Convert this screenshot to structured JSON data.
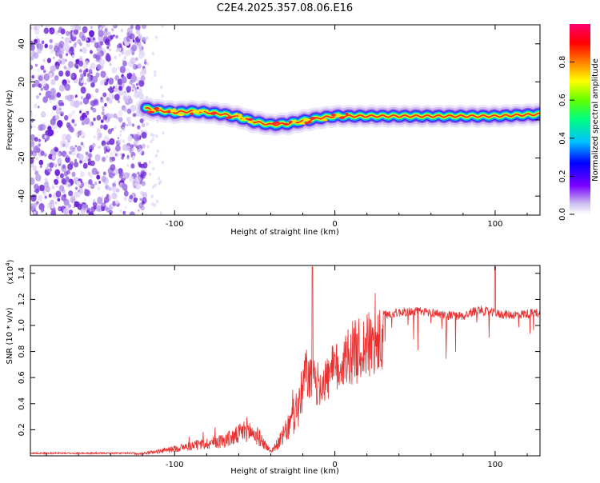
{
  "page_title": "C2E4.2025.357.08.06.E16",
  "colors": {
    "snr_line": "#e83030",
    "axis": "#000000",
    "noise_purple": "#7b2be0",
    "colorbar_stops": [
      "#b0a0e0",
      "#7a00ff",
      "#0000ff",
      "#00bfff",
      "#00ff7f",
      "#7fff00",
      "#ffff00",
      "#ff8000",
      "#ff0000",
      "#ff0070"
    ]
  },
  "chart_data": [
    {
      "type": "heatmap",
      "name": "spectrogram",
      "title": "C2E4.2025.357.08.06.E16",
      "xlabel": "Height of straight line (km)",
      "ylabel": "Frequency (Hz)",
      "xlim": [
        -190,
        128
      ],
      "ylim": [
        -50,
        50
      ],
      "xticks": [
        -100,
        0,
        100
      ],
      "xtick_labels": [
        "-100",
        "0",
        "100"
      ],
      "yticks": [
        -40,
        -20,
        0,
        20,
        40
      ],
      "ytick_labels": [
        "-40",
        "-20",
        "0",
        "20",
        "40"
      ],
      "ridge": {
        "x": [
          -118,
          -110,
          -100,
          -90,
          -80,
          -70,
          -60,
          -50,
          -40,
          -30,
          -20,
          -10,
          0,
          10,
          20,
          40,
          60,
          80,
          100,
          128
        ],
        "y": [
          6,
          5,
          4,
          4.5,
          4,
          3,
          1.5,
          -1,
          -2.5,
          -2,
          -0.5,
          1,
          2,
          2,
          2,
          2,
          2,
          2,
          2,
          3
        ]
      },
      "noise_region_x": [
        -190,
        -118
      ],
      "colorbar": {
        "label": "Normalized spectral amplitude",
        "range": [
          0,
          1
        ],
        "ticks": [
          0.0,
          0.2,
          0.4,
          0.6,
          0.8
        ],
        "tick_labels": [
          "0.0",
          "0.2",
          "0.4",
          "0.6",
          "0.8"
        ]
      }
    },
    {
      "type": "line",
      "name": "snr",
      "xlabel": "Height of straight line (km)",
      "ylabel": "SNR (10 * v/v)",
      "scale_label": "(x10",
      "scale_exponent": "4",
      "xlim": [
        -190,
        128
      ],
      "ylim": [
        0,
        1.46
      ],
      "xticks": [
        -100,
        0,
        100
      ],
      "xtick_labels": [
        "-100",
        "0",
        "100"
      ],
      "yticks": [
        0.2,
        0.4,
        0.6,
        0.8,
        1.0,
        1.2,
        1.4
      ],
      "ytick_labels": [
        "0.2",
        "0.4",
        "0.6",
        "0.8",
        "1.0",
        "1.2",
        "1.4"
      ],
      "envelope": {
        "x": [
          -190,
          -125,
          -118,
          -110,
          -100,
          -90,
          -80,
          -70,
          -62,
          -55,
          -48,
          -40,
          -35,
          -28,
          -22,
          -18,
          -15,
          -10,
          -5,
          0,
          5,
          10,
          20,
          30,
          40,
          50,
          60,
          70,
          80,
          85,
          90,
          100,
          110,
          120,
          128
        ],
        "y": [
          0.02,
          0.02,
          0.03,
          0.05,
          0.08,
          0.11,
          0.14,
          0.17,
          0.22,
          0.3,
          0.22,
          0.05,
          0.15,
          0.35,
          0.6,
          0.8,
          0.72,
          0.68,
          0.74,
          0.82,
          0.9,
          0.98,
          1.05,
          1.08,
          1.1,
          1.11,
          1.1,
          1.08,
          1.07,
          1.1,
          1.12,
          1.09,
          1.08,
          1.09,
          1.1
        ]
      }
    }
  ]
}
